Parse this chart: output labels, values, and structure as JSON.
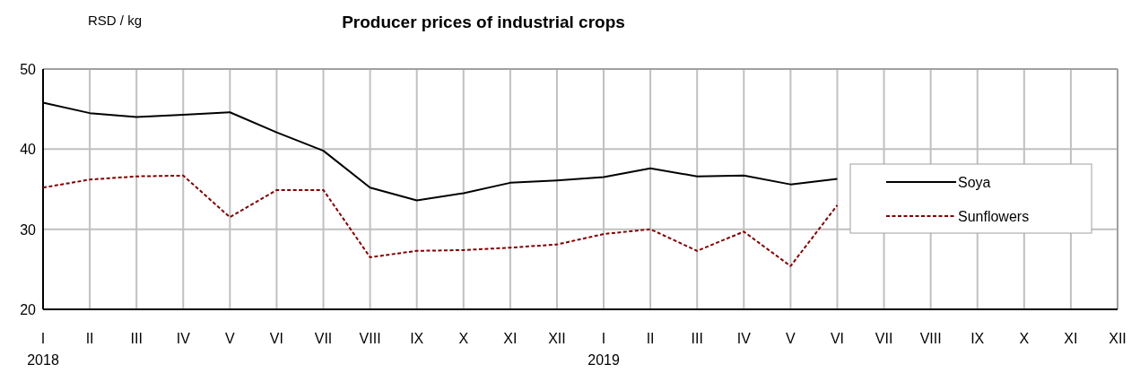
{
  "chart_data": {
    "type": "line",
    "title": "Producer prices of industrial crops",
    "ylabel": "RSD / kg",
    "categories": [
      "I\n2018",
      "II",
      "III",
      "IV",
      "V",
      "VI",
      "VII",
      "VIII",
      "IX",
      "X",
      "XI",
      "XII",
      "I\n2019",
      "II",
      "III",
      "IV",
      "V",
      "VI",
      "VII",
      "VIII",
      "IX",
      "X",
      "XI",
      "XII"
    ],
    "series": [
      {
        "name": "Soya",
        "color": "#000000",
        "line_style": "solid",
        "values": [
          45.8,
          44.5,
          44.0,
          44.3,
          44.6,
          42.1,
          39.8,
          35.2,
          33.6,
          34.5,
          35.8,
          36.1,
          36.5,
          37.6,
          36.6,
          36.7,
          35.6,
          36.3,
          null,
          null,
          null,
          null,
          null,
          null
        ]
      },
      {
        "name": "Sunflowers",
        "color": "#800000",
        "line_style": "dashed",
        "values": [
          35.2,
          36.2,
          36.6,
          36.7,
          31.5,
          34.9,
          34.9,
          26.5,
          27.3,
          27.4,
          27.7,
          28.1,
          29.4,
          30.0,
          27.3,
          29.7,
          25.4,
          33.0,
          null,
          null,
          null,
          null,
          null,
          null
        ]
      }
    ],
    "ylim": [
      20,
      50
    ],
    "yticks": [
      20,
      30,
      40,
      50
    ],
    "grid": true,
    "legend": "right",
    "marker": "none"
  }
}
